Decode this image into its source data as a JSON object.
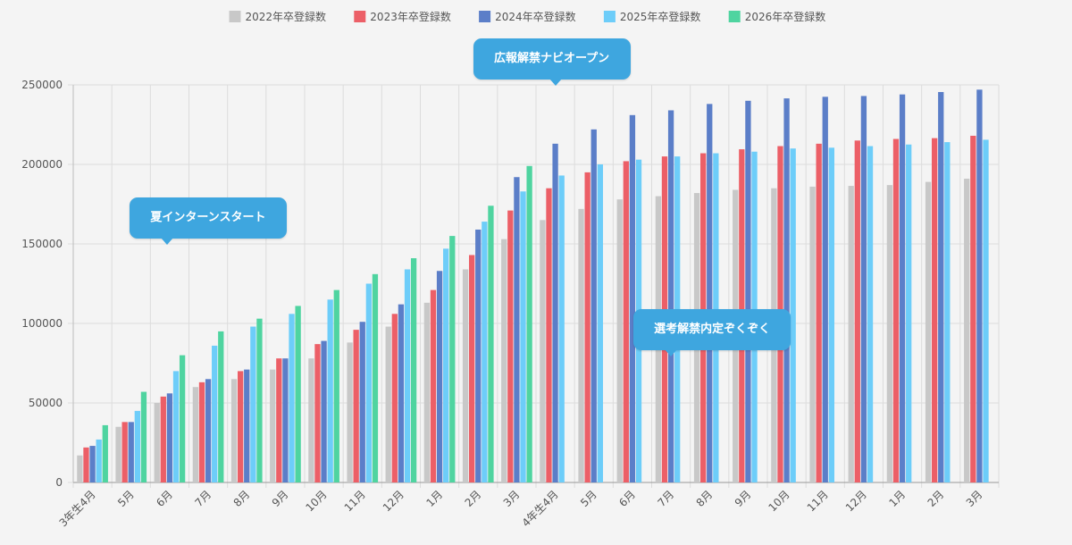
{
  "chart_data": {
    "type": "bar",
    "categories": [
      "3年生4月",
      "5月",
      "6月",
      "7月",
      "8月",
      "9月",
      "10月",
      "11月",
      "12月",
      "1月",
      "2月",
      "3月",
      "4年生4月",
      "5月",
      "6月",
      "7月",
      "8月",
      "9月",
      "10月",
      "11月",
      "12月",
      "1月",
      "2月",
      "3月"
    ],
    "series": [
      {
        "name": "2022年卒登録数",
        "color": "#c8c8c8",
        "values": [
          17000,
          35000,
          50000,
          60000,
          65000,
          71000,
          78000,
          88000,
          98000,
          113000,
          134000,
          153000,
          165000,
          172000,
          178000,
          180000,
          182000,
          184000,
          185000,
          186000,
          186500,
          187000,
          189000,
          191000
        ]
      },
      {
        "name": "2023年卒登録数",
        "color": "#ec5f67",
        "values": [
          22000,
          38000,
          54000,
          63000,
          70000,
          78000,
          87000,
          96000,
          106000,
          121000,
          143000,
          171000,
          185000,
          195000,
          202000,
          205000,
          207000,
          209500,
          211500,
          213000,
          215000,
          216000,
          216500,
          218000
        ]
      },
      {
        "name": "2024年卒登録数",
        "color": "#5b7ec8",
        "values": [
          23000,
          38000,
          56000,
          65000,
          71000,
          78000,
          89000,
          101000,
          112000,
          133000,
          159000,
          192000,
          213000,
          222000,
          231000,
          234000,
          238000,
          240000,
          241500,
          242500,
          243000,
          244000,
          245500,
          247000
        ]
      },
      {
        "name": "2025年卒登録数",
        "color": "#6dcdf9",
        "values": [
          27000,
          45000,
          70000,
          86000,
          98000,
          106000,
          115000,
          125000,
          134000,
          147000,
          164000,
          183000,
          193000,
          200000,
          203000,
          205000,
          207000,
          208000,
          210000,
          210500,
          211500,
          212500,
          214000,
          215500
        ]
      },
      {
        "name": "2026年卒登録数",
        "color": "#4fd4a0",
        "values": [
          36000,
          57000,
          80000,
          95000,
          103000,
          111000,
          121000,
          131000,
          141000,
          155000,
          174000,
          199000,
          null,
          null,
          null,
          null,
          null,
          null,
          null,
          null,
          null,
          null,
          null,
          null
        ]
      }
    ],
    "ylim": [
      0,
      250000
    ],
    "yticks": [
      0,
      50000,
      100000,
      150000,
      200000,
      250000
    ],
    "grid": true,
    "legend": "top-center",
    "annotations": [
      {
        "text": "夏インターンスタート",
        "category_index": 2,
        "y": 150000
      },
      {
        "text": "広報解禁ナビオープン",
        "category_index": 12,
        "y": 250000
      },
      {
        "text": "選考解禁内定ぞくぞく",
        "category_index": 15,
        "y": 80000
      }
    ]
  }
}
